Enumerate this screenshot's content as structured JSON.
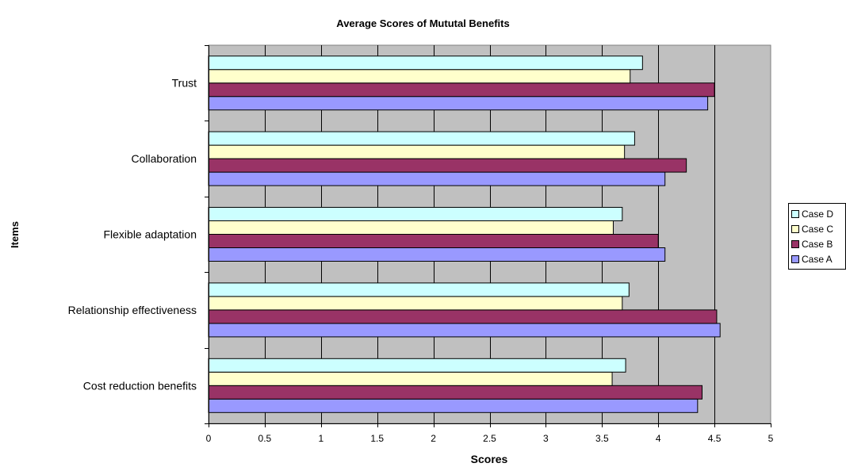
{
  "chart_data": {
    "type": "bar",
    "orientation": "horizontal",
    "title": "Average Scores of Mututal Benefits",
    "xlabel": "Scores",
    "ylabel": "Items",
    "xlim": [
      0,
      5
    ],
    "x_ticks": [
      "0",
      "0.5",
      "1",
      "1.5",
      "2",
      "2.5",
      "3",
      "3.5",
      "4",
      "4.5",
      "5"
    ],
    "categories": [
      "Cost reduction benefits",
      "Relationship effectiveness",
      "Flexible adaptation",
      "Collaboration",
      "Trust"
    ],
    "series": [
      {
        "name": "Case A",
        "color": "#9999ff",
        "values": [
          4.35,
          4.55,
          4.06,
          4.06,
          4.44
        ]
      },
      {
        "name": "Case B",
        "color": "#993366",
        "values": [
          4.39,
          4.52,
          4.0,
          4.25,
          4.5
        ]
      },
      {
        "name": "Case C",
        "color": "#ffffcc",
        "values": [
          3.59,
          3.68,
          3.6,
          3.7,
          3.75
        ]
      },
      {
        "name": "Case D",
        "color": "#ccffff",
        "values": [
          3.71,
          3.74,
          3.68,
          3.79,
          3.86
        ]
      }
    ],
    "legend_order": [
      "Case D",
      "Case C",
      "Case B",
      "Case A"
    ],
    "legend_position": "right",
    "plot_background": "#c0c0c0",
    "grid": true
  }
}
